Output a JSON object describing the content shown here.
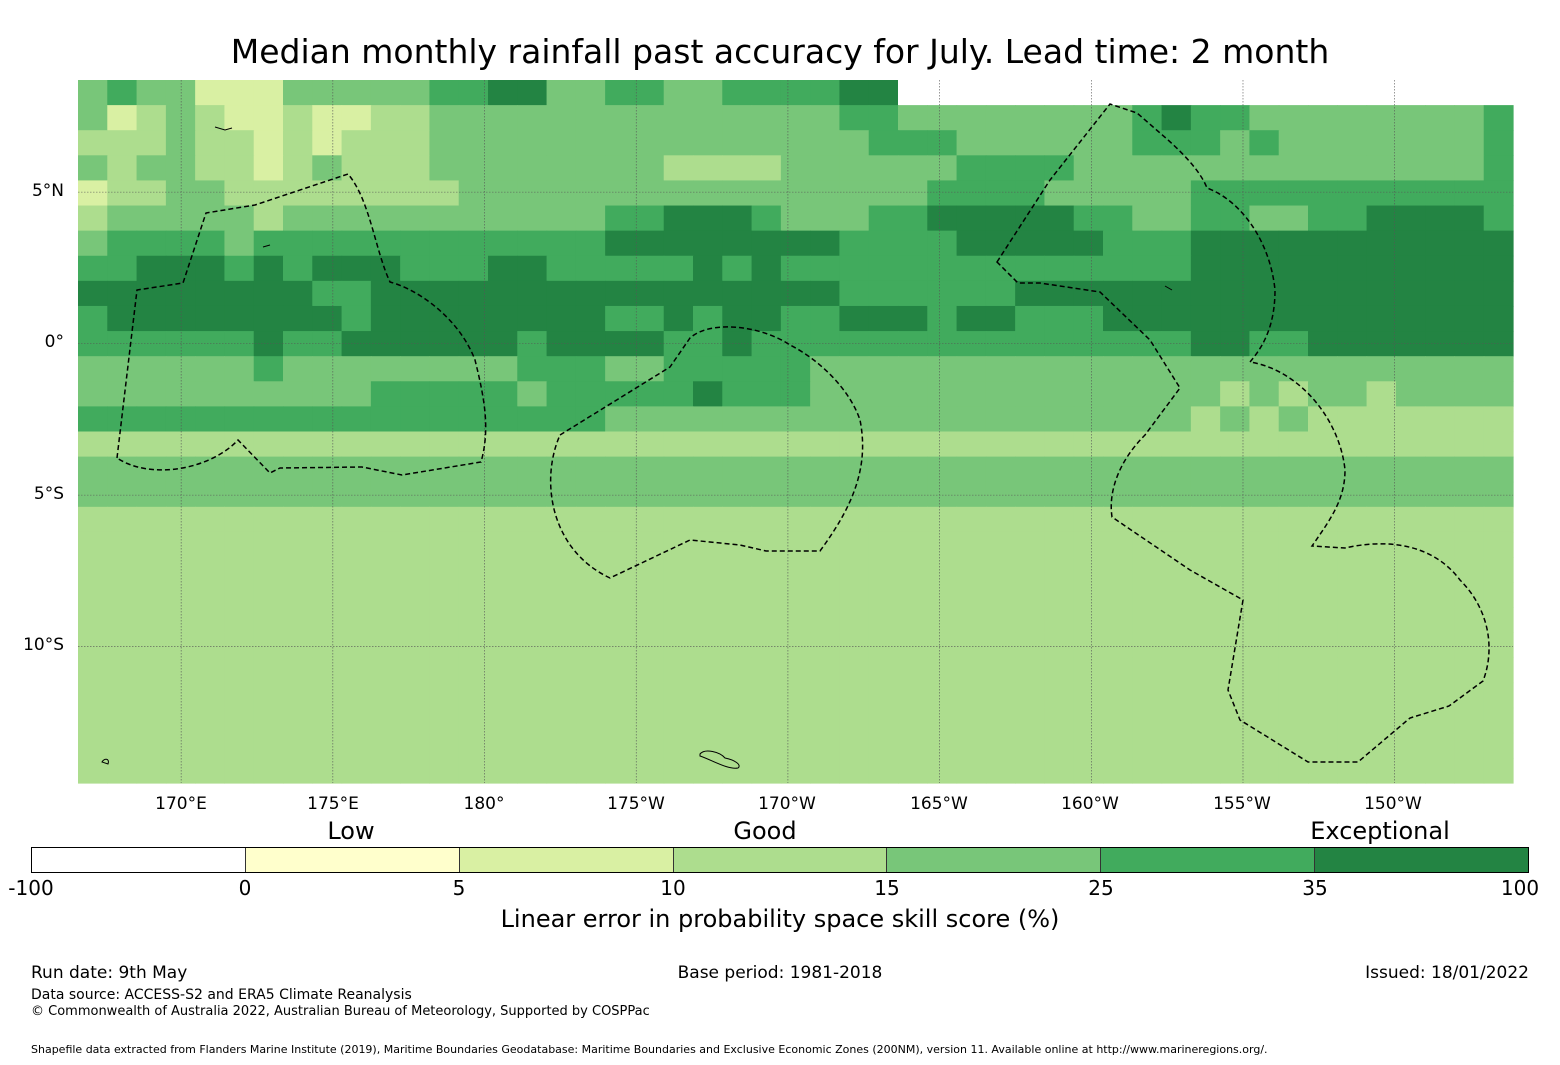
{
  "title": "Median monthly rainfall past accuracy for July. Lead time: 2 month",
  "map": {
    "lat_labels": [
      "5°N",
      "0°",
      "5°S",
      "10°S"
    ],
    "lon_labels": [
      "170°E",
      "175°E",
      "180°",
      "175°W",
      "170°W",
      "165°W",
      "160°W",
      "155°W",
      "150°W"
    ],
    "lat_values": [
      5,
      0,
      -5,
      -10
    ],
    "lon_values": [
      170,
      175,
      180,
      -175,
      -170,
      -165,
      -160,
      -155,
      -150
    ],
    "lon_range_deg_east": [
      166.6,
      213.9
    ],
    "lat_range": [
      -14.5,
      8.7
    ],
    "grid_rows": [
      "4544222444445566445544555566777788887777788888888",
      "4234322322334444444444444455444444445655444444445",
      "3334332323334444444444444445554444445554544444445",
      "4344332343334444444433334444445555444444444444445",
      "2334433333333444444444444444455554444455555555555",
      "3444443444444444445566654445566666554455445566665",
      "4555545555555555556666666655556666655566666666666",
      "5566656566655566555556565555555555555566666666666",
      "6666666655666666666666666655555566666666666666666",
      "5666666665666666665565665566656655566666666666666",
      "5555556556666665666655655555555555555566556666666",
      "4444445444444445554455555444444444444444444444444",
      "4444444444555554555556555444444444444443434434444",
      "5555555555555555554444444444444444444434343333333",
      "3333333333333333333333333333333333333333333333333",
      "4444444444444444444444444444444444444444444444444",
      "4444444444444444444444444444444444444444444444444",
      "3333333333333333333333333333333333333333333333333",
      "3333333333333333333333333333333333333333333333333",
      "3333333333333333333333333333333333333333333333333",
      "3333333333333333333333333333333333333333333333333",
      "3333333333333333333333333333333333333333333333333",
      "3333333333333333333333333333333333333333333333333",
      "3333333333333333333333333333333333333333333333333",
      "3333333333333333333333333333333333333333333333333",
      "3333333333333333333333333333333333333333333333333",
      "3333333333333333333333333333333333333333333333333",
      "3333333333333333333333333333333333333333333333333"
    ]
  },
  "legend": {
    "categories": [
      "Low",
      "Good",
      "Exceptional"
    ],
    "ticks": [
      "-100",
      "0",
      "5",
      "10",
      "15",
      "25",
      "35",
      "100"
    ],
    "colors": [
      "#ffffff",
      "#ffffcc",
      "#d9f0a3",
      "#addd8e",
      "#78c679",
      "#41ab5d",
      "#238443"
    ],
    "label": "Linear error in probability space skill score (%)"
  },
  "footer": {
    "run_date": "Run date: 9th May",
    "base_period": "Base period: 1981-2018",
    "issued": "Issued: 18/01/2022",
    "data_source": "Data source: ACCESS-S2 and ERA5 Climate Reanalysis",
    "copyright": "© Commonwealth of Australia 2022, Australian Bureau of Meteorology, Supported by COSPPac",
    "shapefile": "Shapefile data extracted from Flanders Marine Institute (2019), Maritime Boundaries Geodatabase: Maritime Boundaries and Exclusive Economic Zones (200NM), version 11. Available online at http://www.marineregions.org/."
  }
}
